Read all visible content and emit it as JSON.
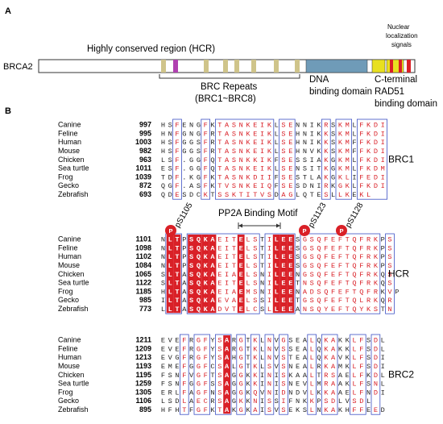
{
  "colors": {
    "conserved_bg": "#d92027",
    "conserved_text": "#ffffff",
    "similar_text": "#d92027",
    "box_border": "#3b4fc4",
    "dna_domain": "#6f9bb8",
    "nls": "#e8e020",
    "brc_box": "#cfc48a",
    "magenta_box": "#b040b0"
  },
  "panel_a": {
    "label": "A",
    "gene": "BRCA2",
    "hcr_label": "Highly conserved region (HCR)",
    "brc_label_1": "BRC Repeats",
    "brc_label_2": "(BRC1~BRC8)",
    "dna_label_1": "DNA",
    "dna_label_2": "binding domain",
    "nls_label_1": "Nuclear",
    "nls_label_2": "localization",
    "nls_label_3": "signals",
    "ct_label_1": "C-terminal",
    "ct_label_2": "RAD51",
    "ct_label_3": "binding domain"
  },
  "panel_b": {
    "label": "B",
    "motif_label": "PP2A Binding Motif",
    "phospho_sites": [
      "pS1105",
      "pS1123",
      "pS1128"
    ],
    "p_badge": "P",
    "blocks": [
      {
        "name": "BRC1",
        "rows": [
          {
            "species": "Canine",
            "pos": "997",
            "seq": "HSFENGFKTASNKEIKLSENNIKRSKMLFKDI"
          },
          {
            "species": "Feline",
            "pos": "995",
            "seq": "HNFGNGFRTASNKEIKLSEHNIKKSKMLFKDI"
          },
          {
            "species": "Human",
            "pos": "1003",
            "seq": "HSFGGSFRTASNKEIKLSEHNIKKSKMFFKDI"
          },
          {
            "species": "Mouse",
            "pos": "982",
            "seq": "HSFGGSFRTASNKEIKLSEHNVKKSKMFFKDI"
          },
          {
            "species": "Chicken",
            "pos": "963",
            "seq": "LSF.GGFQTASNKKIKFSESSIAKGKMLFKDI"
          },
          {
            "species": "Sea turtle",
            "pos": "1011",
            "seq": "ESF.GGFQTASNKEIKLSENSITKGKMLFKDM"
          },
          {
            "species": "Frog",
            "pos": "1039",
            "seq": "TDF.KGFKTASNKDIIFSESTLAKGKLIFEDI"
          },
          {
            "species": "Gecko",
            "pos": "872",
            "seq": "QGF.ASFKTVSNKEIQFSESDNIRKGKLFKDI"
          },
          {
            "species": "Zebrafish",
            "pos": "693",
            "seq": "QDESDCKTSSKTITVSDAGLQTESLLKEKL"
          }
        ]
      },
      {
        "name": "HCR",
        "rows": [
          {
            "species": "Canine",
            "pos": "1101",
            "seq": "NLTPSQKAEITELSTILEESGSQFEFTQFRKPS"
          },
          {
            "species": "Feline",
            "pos": "1098",
            "seq": "NLTPSQKAEITELSTILEESGSQFEFTQFRKPS"
          },
          {
            "species": "Human",
            "pos": "1102",
            "seq": "NLTPSQKAEITELSTILEESGSQFEFTQFRKPS"
          },
          {
            "species": "Mouse",
            "pos": "1084",
            "seq": "NLTPSQKAEITELSTILEESGSQFEFTQFRKPS"
          },
          {
            "species": "Chicken",
            "pos": "1065",
            "seq": "SLTASQKAEIAELSNILEENGSQFEFTQFRKQS"
          },
          {
            "species": "Sea turtle",
            "pos": "1122",
            "seq": "SLTASQKAEITELSNILEETNSQFEFTQFRKQS"
          },
          {
            "species": "Frog",
            "pos": "1185",
            "seq": "HLTASQKAEIAEMSNILEENADSQFEFTQFRKVP"
          },
          {
            "species": "Gecko",
            "pos": "985",
            "seq": "ILTASQKAEVAELSSILEETGSQFEFTQLRKQR"
          },
          {
            "species": "Zebrafish",
            "pos": "773",
            "seq": "LLTASQKADVTELCSLLEEANSQYEFTQYKSTN"
          }
        ]
      },
      {
        "name": "BRC2",
        "rows": [
          {
            "species": "Canine",
            "pos": "1211",
            "seq": "EVEFRGFYSARGTKLNVGSEALQKAKKLFSDL"
          },
          {
            "species": "Feline",
            "pos": "1209",
            "seq": "EVEFRGFYSARGTKLNVSSEALQKAKKLFSDL"
          },
          {
            "species": "Human",
            "pos": "1213",
            "seq": "EVGFRGFYSAHGTKLNVSTEALQKAVKLFSDI"
          },
          {
            "species": "Mouse",
            "pos": "1193",
            "seq": "EMEFGGFCSALGTKLSVSNEALRKAMKLFSDI"
          },
          {
            "species": "Chicken",
            "pos": "1195",
            "seq": "FSNFVGFTSAGGKKINISKAALTRSAELFKDL"
          },
          {
            "species": "Sea turtle",
            "pos": "1259",
            "seq": "FSNFGGFSSAGGKKINISNEVLMRAAKLFSNL"
          },
          {
            "species": "Frog",
            "pos": "1305",
            "seq": "ERLFAGFNSAGGKQVNIDNDVLKKAAELFNDI"
          },
          {
            "species": "Gecko",
            "pos": "1106",
            "seq": "LSDLAECRSAGKKNISSIFNKKPSDLVSDL"
          },
          {
            "species": "Zebrafish",
            "pos": "895",
            "seq": "HFHTFGFKTAKGKAISVSEKSLNKAKHFFEED"
          }
        ]
      }
    ]
  }
}
